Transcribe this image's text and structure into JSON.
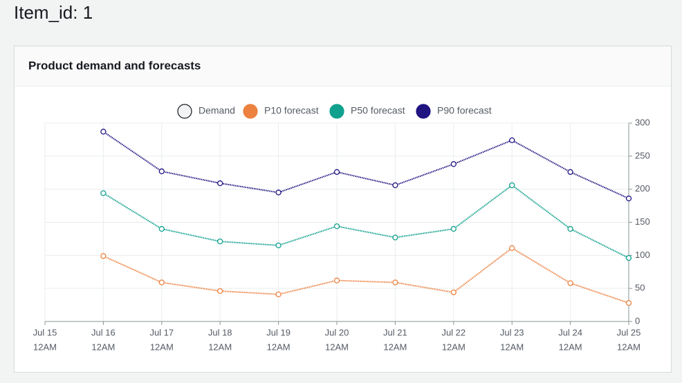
{
  "page_title": "Item_id: 1",
  "card_title": "Product demand and forecasts",
  "chart_data": {
    "type": "line",
    "x": [
      "Jul 16 12AM",
      "Jul 17 12AM",
      "Jul 18 12AM",
      "Jul 19 12AM",
      "Jul 20 12AM",
      "Jul 21 12AM",
      "Jul 22 12AM",
      "Jul 23 12AM",
      "Jul 24 12AM",
      "Jul 25 12AM"
    ],
    "xticks": [
      [
        "Jul 15",
        "12AM"
      ],
      [
        "Jul 16",
        "12AM"
      ],
      [
        "Jul 17",
        "12AM"
      ],
      [
        "Jul 18",
        "12AM"
      ],
      [
        "Jul 19",
        "12AM"
      ],
      [
        "Jul 20",
        "12AM"
      ],
      [
        "Jul 21",
        "12AM"
      ],
      [
        "Jul 22",
        "12AM"
      ],
      [
        "Jul 23",
        "12AM"
      ],
      [
        "Jul 24",
        "12AM"
      ],
      [
        "Jul 25",
        "12AM"
      ]
    ],
    "ylim": [
      0,
      300
    ],
    "yticks": [
      0,
      50,
      100,
      150,
      200,
      250,
      300
    ],
    "grid": true,
    "series": [
      {
        "name": "Demand",
        "color": "#f2f3f3",
        "values": [
          null,
          null,
          null,
          null,
          null,
          null,
          null,
          null,
          null,
          null
        ]
      },
      {
        "name": "P10 forecast",
        "color": "#ec8140",
        "values": [
          99,
          59,
          46,
          41,
          62,
          59,
          44,
          111,
          58,
          28
        ]
      },
      {
        "name": "P50 forecast",
        "color": "#10a08e",
        "values": [
          194,
          140,
          121,
          115,
          144,
          127,
          140,
          206,
          140,
          96
        ]
      },
      {
        "name": "P90 forecast",
        "color": "#1f1481",
        "values": [
          287,
          227,
          209,
          195,
          226,
          206,
          238,
          274,
          226,
          186
        ]
      }
    ]
  }
}
